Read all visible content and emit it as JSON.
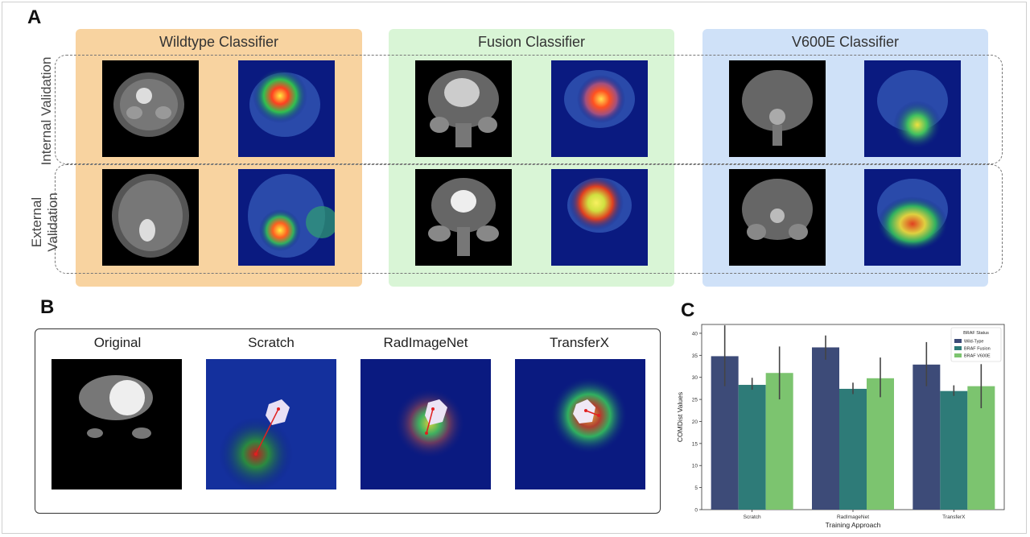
{
  "panel_a": {
    "label": "A",
    "columns": [
      {
        "title": "Wildtype Classifier",
        "color": "#f8d3a0"
      },
      {
        "title": "Fusion Classifier",
        "color": "#d9f5d6"
      },
      {
        "title": "V600E Classifier",
        "color": "#cfe1f8"
      }
    ],
    "rows": [
      {
        "label": "Internal Validation"
      },
      {
        "label_line1": "External",
        "label_line2": "Validation"
      }
    ]
  },
  "panel_b": {
    "label": "B",
    "titles": [
      "Original",
      "Scratch",
      "RadImageNet",
      "TransferX"
    ]
  },
  "panel_c": {
    "label": "C"
  },
  "chart_data": {
    "type": "bar",
    "categories": [
      "Scratch",
      "RadImageNet",
      "TransferX"
    ],
    "series": [
      {
        "name": "Wild-Type",
        "values": [
          34.8,
          36.8,
          32.9
        ],
        "err_low": [
          28.0,
          34.0,
          28.0
        ],
        "err_high": [
          41.8,
          39.5,
          38.0
        ],
        "color": "#3d4b78"
      },
      {
        "name": "BRAF Fusion",
        "values": [
          28.3,
          27.4,
          26.9
        ],
        "err_low": [
          27.2,
          26.2,
          25.8
        ],
        "err_high": [
          29.9,
          28.8,
          28.2
        ],
        "color": "#2e7b78"
      },
      {
        "name": "BRAF V600E",
        "values": [
          31.0,
          29.8,
          28.0
        ],
        "err_low": [
          25.0,
          25.5,
          23.0
        ],
        "err_high": [
          37.0,
          34.5,
          33.0
        ],
        "color": "#7cc46f"
      }
    ],
    "legend_title": "BRAF Status",
    "legend_position": "top-right",
    "xlabel": "Training Approach",
    "ylabel": "COMDist Values",
    "ylim": [
      0,
      42
    ],
    "yticks": [
      0,
      5,
      10,
      15,
      20,
      25,
      30,
      35,
      40
    ]
  }
}
